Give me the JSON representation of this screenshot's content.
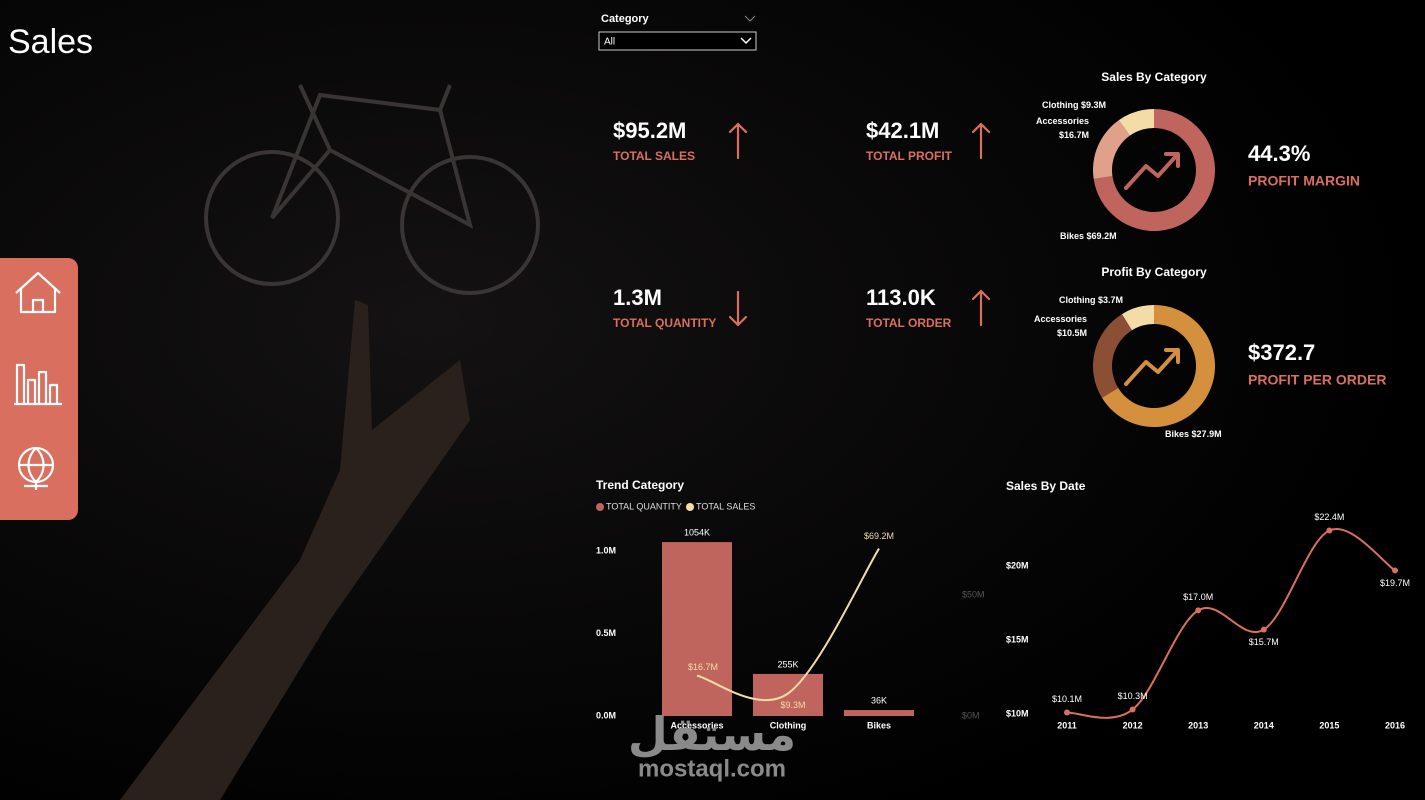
{
  "title": "Sales",
  "filter": {
    "label": "Category",
    "value": "All"
  },
  "kpis": [
    {
      "value": "$95.2M",
      "label": "TOTAL SALES"
    },
    {
      "value": "$42.1M",
      "label": "TOTAL PROFIT"
    },
    {
      "value": "1.3M",
      "label": "TOTAL QUANTITY"
    },
    {
      "value": "113.0K",
      "label": "TOTAL ORDER"
    },
    {
      "value": "44.3%",
      "label": "PROFIT MARGIN"
    },
    {
      "value": "$372.7",
      "label": "PROFIT PER ORDER"
    }
  ],
  "watermark": {
    "arabic": "مستقل",
    "latin": "mostaql.com"
  },
  "chart_data": [
    {
      "type": "donut",
      "title": "Sales By Category",
      "categories": [
        "Bikes",
        "Accessories",
        "Clothing"
      ],
      "values": [
        69200000,
        16700000,
        9300000
      ],
      "value_labels": [
        "$69.2M",
        "$16.7M",
        "$9.3M"
      ],
      "colors": [
        "#c0655e",
        "#e0a08a",
        "#f3dca6"
      ]
    },
    {
      "type": "donut",
      "title": "Profit By Category",
      "categories": [
        "Bikes",
        "Accessories",
        "Clothing"
      ],
      "values": [
        27900000,
        10500000,
        3700000
      ],
      "value_labels": [
        "$27.9M",
        "$10.5M",
        "$3.7M"
      ],
      "colors": [
        "#d4903c",
        "#8a4f35",
        "#f3dca6"
      ]
    },
    {
      "type": "combo",
      "title": "Trend Category",
      "categories": [
        "Accessories",
        "Clothing",
        "Bikes"
      ],
      "series": [
        {
          "name": "TOTAL QUANTITY",
          "color": "#c0655e",
          "kind": "bar",
          "values": [
            1054000,
            255000,
            36000
          ],
          "value_labels": [
            "1054K",
            "255K",
            "36K"
          ]
        },
        {
          "name": "TOTAL SALES",
          "color": "#f3dca6",
          "kind": "line",
          "axis": "y2",
          "values": [
            16700000,
            9300000,
            69200000
          ],
          "value_labels": [
            "$16.7M",
            "$9.3M",
            "$69.2M"
          ]
        }
      ],
      "ylim": [
        0,
        1100000
      ],
      "yticks": [
        {
          "value": 0,
          "label": "0.0M"
        },
        {
          "value": 500000,
          "label": "0.5M"
        },
        {
          "value": 1000000,
          "label": "1.0M"
        }
      ],
      "y2lim": [
        0,
        75000000
      ],
      "y2ticks": [
        {
          "value": 0,
          "label": "$0M"
        },
        {
          "value": 50000000,
          "label": "$50M"
        }
      ]
    },
    {
      "type": "line",
      "title": "Sales By Date",
      "x": [
        2011,
        2012,
        2013,
        2014,
        2015,
        2016
      ],
      "values": [
        10100000,
        10300000,
        17000000,
        15700000,
        22400000,
        19700000
      ],
      "value_labels": [
        "$10.1M",
        "$10.3M",
        "$17.0M",
        "$15.7M",
        "$22.4M",
        "$19.7M"
      ],
      "color": "#d9705f",
      "xlim": [
        2011,
        2016
      ],
      "xticks": [
        2011,
        2012,
        2013,
        2014,
        2015,
        2016
      ],
      "ylim": [
        10000000,
        23000000
      ],
      "yticks": [
        {
          "value": 10000000,
          "label": "$10M"
        },
        {
          "value": 15000000,
          "label": "$15M"
        },
        {
          "value": 20000000,
          "label": "$20M"
        }
      ]
    }
  ]
}
